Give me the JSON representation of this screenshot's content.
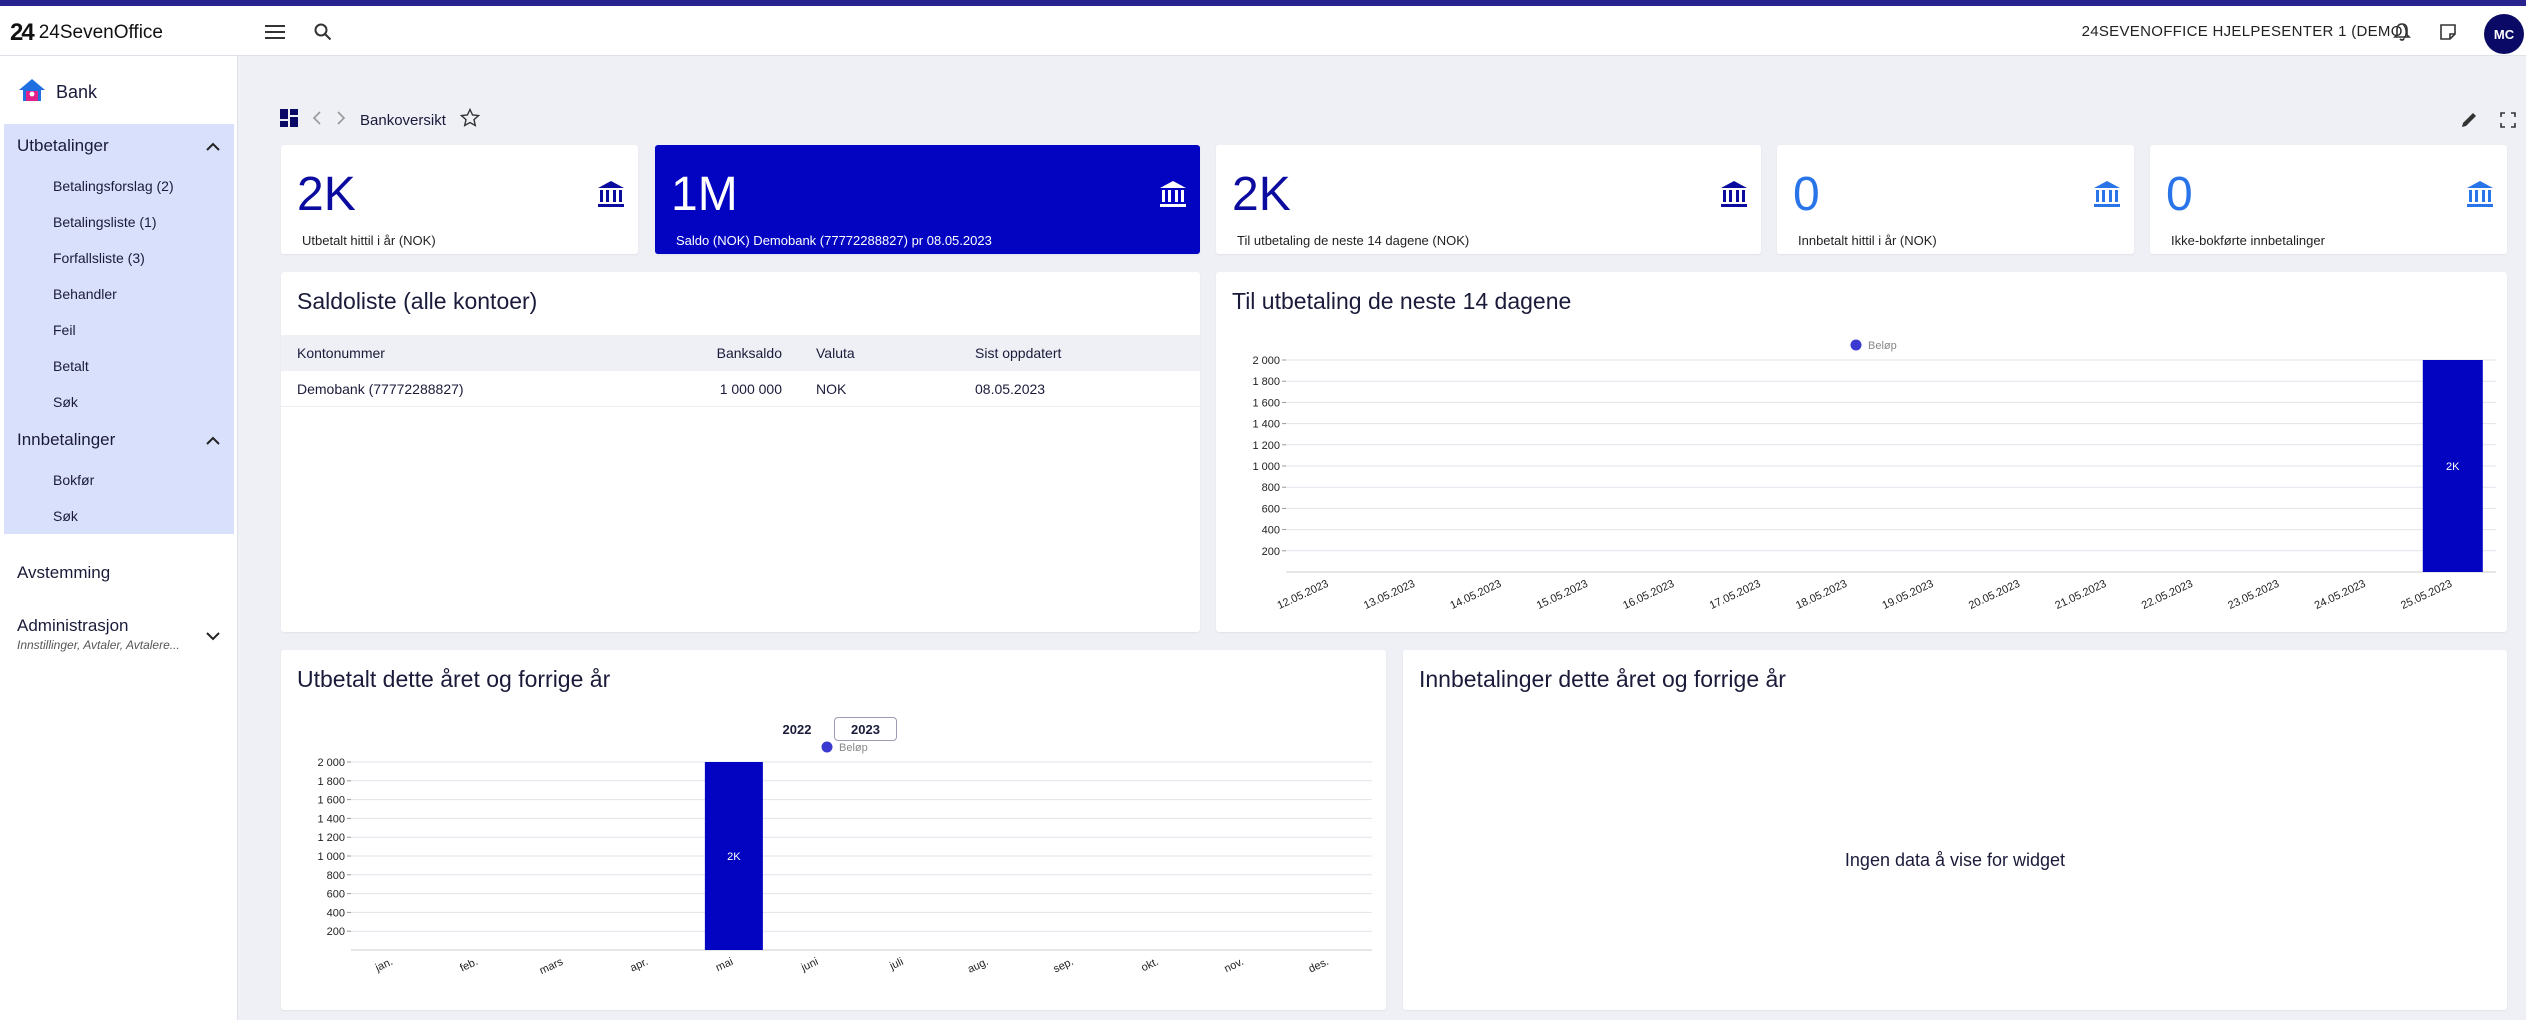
{
  "app": {
    "logo_mark": "24",
    "logo_text": "24SevenOffice",
    "company": "24SEVENOFFICE HJELPESENTER 1 (DEMO)",
    "avatar": "MC",
    "accent": "#0303c2",
    "brand_stripe": "#28238f"
  },
  "sidebar": {
    "title": "Bank",
    "utbetalinger": {
      "label": "Utbetalinger",
      "items": [
        "Betalingsforslag (2)",
        "Betalingsliste (1)",
        "Forfallsliste (3)",
        "Behandler",
        "Feil",
        "Betalt",
        "Søk"
      ]
    },
    "innbetalinger": {
      "label": "Innbetalinger",
      "items": [
        "Bokfør",
        "Søk"
      ]
    },
    "avstemming": "Avstemming",
    "administrasjon": {
      "label": "Administrasjon",
      "sub": "Innstillinger, Avtaler, Avtalere..."
    }
  },
  "breadcrumb": {
    "label": "Bankoversikt"
  },
  "kpis": [
    {
      "value": "2K",
      "label": "Utbetalt hittil i år (NOK)"
    },
    {
      "value": "1M",
      "label": "Saldo (NOK) Demobank (77772288827) pr 08.05.2023"
    },
    {
      "value": "2K",
      "label": "Til utbetaling de neste 14 dagene (NOK)"
    },
    {
      "value": "0",
      "label": "Innbetalt hittil i år (NOK)"
    },
    {
      "value": "0",
      "label": "Ikke-bokførte innbetalinger"
    }
  ],
  "saldoliste": {
    "title": "Saldoliste (alle kontoer)",
    "columns": {
      "konto": "Kontonummer",
      "saldo": "Banksaldo",
      "valuta": "Valuta",
      "oppdatert": "Sist oppdatert"
    },
    "rows": [
      {
        "konto": "Demobank (77772288827)",
        "saldo": "1 000 000",
        "valuta": "NOK",
        "oppdatert": "08.05.2023"
      }
    ]
  },
  "widgets": {
    "upcoming_title": "Til utbetaling de neste 14 dagene",
    "outgoing_title": "Utbetalt dette året og forrige år",
    "incoming_title": "Innbetalinger dette året og forrige år",
    "incoming_empty": "Ingen data å vise for widget",
    "year_prev": "2022",
    "year_current": "2023"
  },
  "chart_data": [
    {
      "type": "bar",
      "title": "Til utbetaling de neste 14 dagene",
      "legend": "Beløp",
      "categories": [
        "12.05.2023",
        "13.05.2023",
        "14.05.2023",
        "15.05.2023",
        "16.05.2023",
        "17.05.2023",
        "18.05.2023",
        "19.05.2023",
        "20.05.2023",
        "21.05.2023",
        "22.05.2023",
        "23.05.2023",
        "24.05.2023",
        "25.05.2023"
      ],
      "values": [
        0,
        0,
        0,
        0,
        0,
        0,
        0,
        0,
        0,
        0,
        0,
        0,
        0,
        2000
      ],
      "data_labels": [
        "",
        "",
        "",
        "",
        "",
        "",
        "",
        "",
        "",
        "",
        "",
        "",
        "",
        "2K"
      ],
      "yticks": [
        "200",
        "400",
        "600",
        "800",
        "1 000",
        "1 200",
        "1 400",
        "1 600",
        "1 800",
        "2 000"
      ],
      "ylim": [
        0,
        2000
      ],
      "grid": true,
      "legend_position": "top-center"
    },
    {
      "type": "bar",
      "title": "Utbetalt dette året og forrige år",
      "legend": "Beløp",
      "categories": [
        "jan.",
        "feb.",
        "mars",
        "apr.",
        "mai",
        "juni",
        "juli",
        "aug.",
        "sep.",
        "okt.",
        "nov.",
        "des."
      ],
      "values": [
        0,
        0,
        0,
        0,
        2000,
        0,
        0,
        0,
        0,
        0,
        0,
        0
      ],
      "data_labels": [
        "",
        "",
        "",
        "",
        "2K",
        "",
        "",
        "",
        "",
        "",
        "",
        ""
      ],
      "yticks": [
        "200",
        "400",
        "600",
        "800",
        "1 000",
        "1 200",
        "1 400",
        "1 600",
        "1 800",
        "2 000"
      ],
      "ylim": [
        0,
        2000
      ],
      "grid": true,
      "legend_position": "top-center"
    }
  ]
}
